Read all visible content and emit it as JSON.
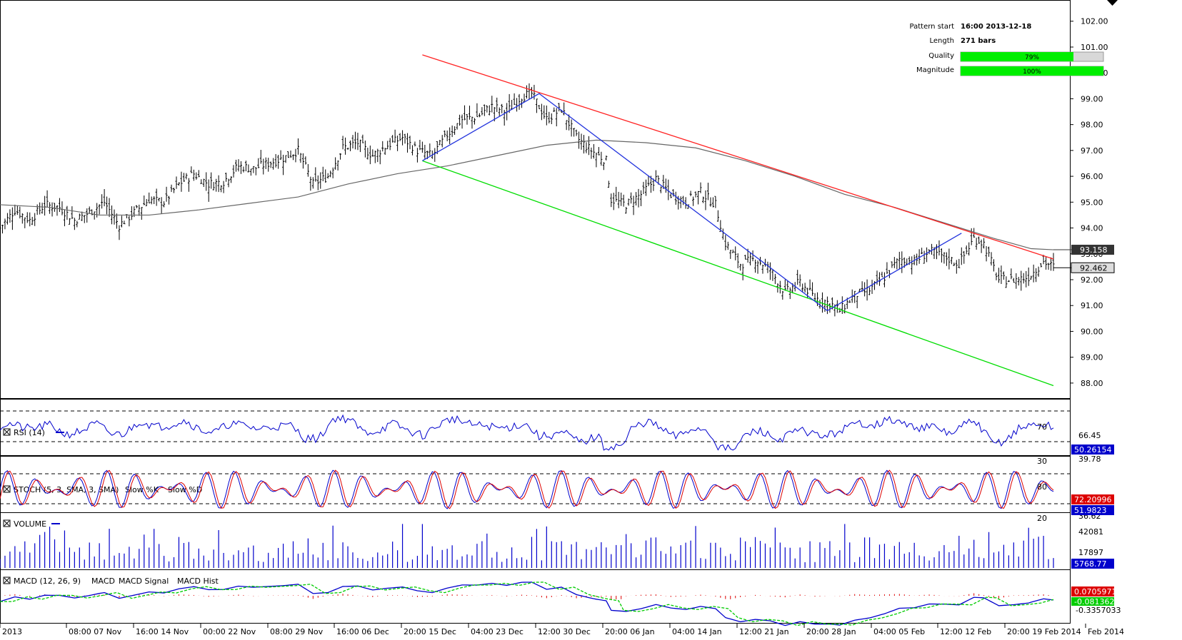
{
  "pattern_info": {
    "rows": [
      {
        "label": "Pattern start",
        "value": "16:00 2013-12-18"
      },
      {
        "label": "Length",
        "value": "271 bars"
      },
      {
        "label": "Quality",
        "value": "79%",
        "fraction": 0.79
      },
      {
        "label": "Magnitude",
        "value": "100%",
        "fraction": 1.0
      }
    ]
  },
  "x_axis": {
    "labels": [
      "2013",
      "08:00 07 Nov",
      "16:00 14 Nov",
      "00:00 22 Nov",
      "08:00 29 Nov",
      "16:00 06 Dec",
      "20:00 15 Dec",
      "04:00 23 Dec",
      "12:00 30 Dec",
      "20:00 06 Jan",
      "04:00 14 Jan",
      "12:00 21 Jan",
      "20:00 28 Jan",
      "04:00 05 Feb",
      "12:00 12 Feb",
      "20:00 19 Feb 2014",
      "Feb 2014"
    ]
  },
  "chart_data": [
    {
      "type": "ohlc",
      "pane": "price",
      "y_ticks": [
        "88.00",
        "89.00",
        "90.00",
        "91.00",
        "92.00",
        "93.00",
        "94.00",
        "95.00",
        "96.00",
        "97.00",
        "98.00",
        "99.00",
        "100.00",
        "101.00",
        "102.00"
      ],
      "ylim": [
        87.5,
        102.6
      ],
      "last_price": "92.462",
      "moving_average_last": "93.158",
      "close_path": [
        [
          0,
          94.0
        ],
        [
          6,
          94.7
        ],
        [
          12,
          94.3
        ],
        [
          18,
          94.9
        ],
        [
          24,
          94.8
        ],
        [
          30,
          94.3
        ],
        [
          36,
          94.6
        ],
        [
          42,
          95.0
        ],
        [
          48,
          94.1
        ],
        [
          54,
          94.6
        ],
        [
          60,
          95.1
        ],
        [
          66,
          95.0
        ],
        [
          72,
          95.7
        ],
        [
          78,
          96.1
        ],
        [
          84,
          95.7
        ],
        [
          90,
          95.8
        ],
        [
          96,
          96.4
        ],
        [
          102,
          96.3
        ],
        [
          108,
          96.5
        ],
        [
          114,
          96.7
        ],
        [
          120,
          97.0
        ],
        [
          126,
          95.7
        ],
        [
          132,
          96.0
        ],
        [
          138,
          97.1
        ],
        [
          144,
          97.3
        ],
        [
          150,
          96.8
        ],
        [
          156,
          97.2
        ],
        [
          162,
          97.5
        ],
        [
          168,
          97.0
        ],
        [
          174,
          96.8
        ],
        [
          180,
          97.6
        ],
        [
          186,
          98.2
        ],
        [
          192,
          98.3
        ],
        [
          198,
          98.7
        ],
        [
          204,
          98.5
        ],
        [
          210,
          99.1
        ],
        [
          214,
          99.2
        ],
        [
          220,
          98.2
        ],
        [
          226,
          98.6
        ],
        [
          232,
          97.5
        ],
        [
          238,
          97.0
        ],
        [
          244,
          96.6
        ],
        [
          246,
          95.1
        ],
        [
          252,
          94.9
        ],
        [
          258,
          95.3
        ],
        [
          264,
          95.9
        ],
        [
          270,
          95.3
        ],
        [
          276,
          95.0
        ],
        [
          282,
          95.4
        ],
        [
          288,
          94.9
        ],
        [
          292,
          93.4
        ],
        [
          298,
          92.6
        ],
        [
          304,
          92.8
        ],
        [
          310,
          92.4
        ],
        [
          316,
          91.5
        ],
        [
          322,
          91.9
        ],
        [
          328,
          91.3
        ],
        [
          334,
          91.1
        ],
        [
          338,
          90.8
        ],
        [
          344,
          91.4
        ],
        [
          350,
          91.6
        ],
        [
          356,
          92.1
        ],
        [
          362,
          92.8
        ],
        [
          368,
          92.7
        ],
        [
          374,
          93.1
        ],
        [
          380,
          92.9
        ],
        [
          386,
          92.6
        ],
        [
          392,
          93.6
        ],
        [
          396,
          93.4
        ],
        [
          402,
          92.0
        ],
        [
          408,
          92.0
        ],
        [
          414,
          92.1
        ],
        [
          420,
          92.7
        ],
        [
          424,
          92.5
        ]
      ],
      "moving_average": [
        [
          0,
          94.9
        ],
        [
          20,
          94.8
        ],
        [
          40,
          94.5
        ],
        [
          60,
          94.5
        ],
        [
          80,
          94.7
        ],
        [
          100,
          94.95
        ],
        [
          120,
          95.2
        ],
        [
          140,
          95.7
        ],
        [
          160,
          96.1
        ],
        [
          180,
          96.4
        ],
        [
          200,
          96.8
        ],
        [
          220,
          97.2
        ],
        [
          240,
          97.4
        ],
        [
          260,
          97.3
        ],
        [
          280,
          97.1
        ],
        [
          300,
          96.6
        ],
        [
          320,
          96.0
        ],
        [
          340,
          95.3
        ],
        [
          360,
          94.8
        ],
        [
          380,
          94.2
        ],
        [
          400,
          93.6
        ],
        [
          415,
          93.2
        ],
        [
          424,
          93.158
        ]
      ],
      "trendlines": {
        "resistance": [
          [
            170,
            100.7
          ],
          [
            424,
            92.8
          ]
        ],
        "support": [
          [
            170,
            96.6
          ],
          [
            424,
            87.9
          ]
        ],
        "pattern_waves": [
          [
            170,
            96.6
          ],
          [
            217,
            99.2
          ],
          [
            333,
            90.8
          ],
          [
            387,
            93.8
          ]
        ]
      }
    },
    {
      "type": "line",
      "pane": "rsi",
      "title": "RSI (14)",
      "levels": [
        "70",
        "30"
      ],
      "y_ticks": [
        "66.45",
        "39.78"
      ],
      "last_value": "50.26154",
      "series": [
        {
          "name": "RSI (14)",
          "color": "#0000cc"
        }
      ]
    },
    {
      "type": "line",
      "pane": "stoch",
      "title": "STOCH (5, 3, SMA, 3, SMA)",
      "legend": [
        "Slow %K",
        "Slow %D"
      ],
      "levels": [
        "80",
        "20"
      ],
      "y_ticks": [
        "36.62"
      ],
      "last_values": [
        "72.20996",
        "51.9823"
      ],
      "series": [
        {
          "name": "Slow %K",
          "color": "#0000cc"
        },
        {
          "name": "Slow %D",
          "color": "#dd0000"
        }
      ]
    },
    {
      "type": "bar",
      "pane": "volume",
      "title": "VOLUME",
      "y_ticks": [
        "42081",
        "17897"
      ],
      "last_value": "5768.77",
      "series": [
        {
          "name": "VOLUME",
          "color": "#0000cc"
        }
      ]
    },
    {
      "type": "line",
      "pane": "macd",
      "title": "MACD (12, 26, 9)",
      "legend": [
        "MACD",
        "MACD Signal",
        "MACD Hist"
      ],
      "y_ticks": [
        "-0.3357033"
      ],
      "last_values": [
        "0.0705971",
        "-0.0813625"
      ],
      "series": [
        {
          "name": "MACD",
          "color": "#0000cc"
        },
        {
          "name": "MACD Signal",
          "color": "#00cc00"
        },
        {
          "name": "MACD Hist",
          "color": "#dd0000"
        }
      ]
    }
  ],
  "colors": {
    "bars": "#000000",
    "resistance": "#ff2222",
    "support": "#00dd00",
    "wave": "#2233dd",
    "moving_average": "#666666",
    "indicator_blue": "#0000cc",
    "indicator_red": "#dd0000",
    "indicator_green": "#00cc00",
    "quality_fill": "#00ee00"
  }
}
